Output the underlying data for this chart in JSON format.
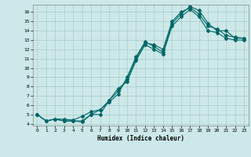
{
  "title": "",
  "xlabel": "Humidex (Indice chaleur)",
  "background_color": "#cce8e8",
  "grid_color": "#aacccc",
  "line_color": "#006666",
  "xlim": [
    -0.5,
    23.5
  ],
  "ylim": [
    3.8,
    16.8
  ],
  "yticks": [
    4,
    5,
    6,
    7,
    8,
    9,
    10,
    11,
    12,
    13,
    14,
    15,
    16
  ],
  "xticks": [
    0,
    1,
    2,
    3,
    4,
    5,
    6,
    7,
    8,
    9,
    10,
    11,
    12,
    13,
    14,
    15,
    16,
    17,
    18,
    19,
    20,
    21,
    22,
    23
  ],
  "series": [
    {
      "x": [
        0,
        1,
        2,
        3,
        4,
        5,
        6,
        7,
        8,
        9,
        10,
        11,
        12,
        13,
        14,
        15,
        16,
        17,
        18,
        19,
        20,
        21,
        22,
        23
      ],
      "y": [
        5,
        4.3,
        4.5,
        4.3,
        4.3,
        4.2,
        5.0,
        5.0,
        6.5,
        7.5,
        8.8,
        11.0,
        12.7,
        12.5,
        12.0,
        15.0,
        16.0,
        16.5,
        15.8,
        14.5,
        14.2,
        13.5,
        13.3,
        13.2
      ]
    },
    {
      "x": [
        0,
        1,
        2,
        3,
        4,
        5,
        6,
        7,
        8,
        9,
        10,
        11,
        12,
        13,
        14,
        15,
        16,
        17,
        18,
        19,
        20,
        21,
        22,
        23
      ],
      "y": [
        5,
        4.3,
        4.5,
        4.5,
        4.4,
        4.8,
        5.3,
        5.5,
        6.3,
        7.2,
        9.0,
        11.2,
        12.8,
        12.3,
        11.7,
        14.8,
        15.8,
        16.6,
        16.2,
        14.8,
        14.0,
        14.0,
        13.2,
        13.2
      ]
    },
    {
      "x": [
        0,
        1,
        2,
        3,
        4,
        5,
        6,
        7,
        8,
        9,
        10,
        11,
        12,
        13,
        14,
        15,
        16,
        17,
        18,
        19,
        20,
        21,
        22,
        23
      ],
      "y": [
        5,
        4.3,
        4.5,
        4.3,
        4.3,
        4.3,
        5.0,
        5.5,
        6.5,
        7.8,
        8.5,
        10.8,
        12.5,
        12.0,
        11.5,
        14.5,
        15.5,
        16.3,
        15.5,
        14.0,
        13.8,
        13.2,
        13.0,
        13.0
      ]
    }
  ]
}
